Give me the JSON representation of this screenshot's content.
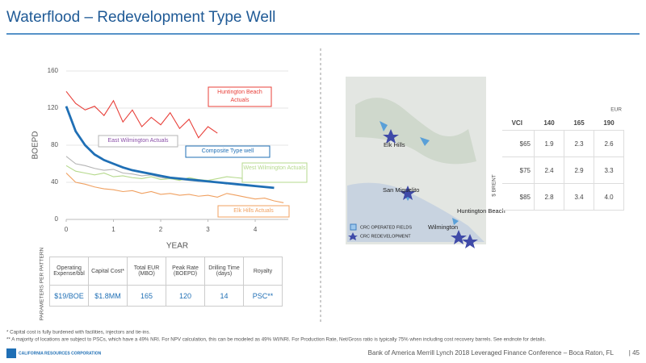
{
  "title": "Waterflood – Redevelopment Type Well",
  "chart_data": {
    "type": "line",
    "x_label": "YEAR",
    "y_label": "BOEPD",
    "x": [
      0,
      0.2,
      0.4,
      0.6,
      0.8,
      1.0,
      1.2,
      1.4,
      1.6,
      1.8,
      2.0,
      2.2,
      2.4,
      2.6,
      2.8,
      3.0,
      3.2,
      3.4,
      3.6,
      3.8,
      4.0,
      4.2,
      4.4,
      4.6
    ],
    "xlim": [
      0,
      4.7
    ],
    "xticks": [
      0,
      1,
      2,
      3,
      4
    ],
    "ylim": [
      0,
      160
    ],
    "yticks": [
      0,
      40,
      80,
      120,
      160
    ],
    "series": [
      {
        "name": "Huntington Beach Actuals",
        "color": "#e8403a",
        "values": [
          138,
          125,
          118,
          122,
          112,
          128,
          105,
          118,
          100,
          110,
          102,
          115,
          98,
          108,
          88,
          100,
          93,
          null,
          null,
          null,
          null,
          null,
          null,
          null
        ]
      },
      {
        "name": "East Wilmington Actuals",
        "color": "#b4b4b4",
        "values": [
          68,
          60,
          58,
          55,
          53,
          54,
          50,
          49,
          47,
          48,
          45,
          44,
          43,
          42,
          41,
          42,
          40,
          38,
          null,
          null,
          null,
          null,
          null,
          null
        ]
      },
      {
        "name": "West Wilmington Actuals",
        "color": "#b5d98c",
        "values": [
          58,
          52,
          50,
          48,
          50,
          46,
          47,
          45,
          44,
          46,
          43,
          44,
          42,
          45,
          43,
          42,
          44,
          46,
          45,
          44,
          43,
          46,
          45,
          null
        ]
      },
      {
        "name": "Elk Hills Actuals",
        "color": "#f0a060",
        "values": [
          50,
          40,
          38,
          35,
          33,
          32,
          30,
          31,
          28,
          30,
          27,
          28,
          26,
          27,
          25,
          26,
          24,
          28,
          26,
          24,
          22,
          23,
          20,
          18
        ]
      },
      {
        "name": "Composite Type well",
        "color": "#1f6fb5",
        "values": [
          122,
          95,
          80,
          70,
          64,
          60,
          56,
          53,
          51,
          49,
          47,
          45,
          44,
          43,
          42,
          41,
          40,
          39,
          38,
          37,
          36,
          35,
          34,
          null
        ]
      }
    ]
  },
  "parameters": {
    "side_label": "PARAMETERS PER PATTERN",
    "columns": [
      {
        "header": "Operating Expense/bbl",
        "value": "$19/BOE"
      },
      {
        "header": "Capital Cost*",
        "value": "$1.8MM"
      },
      {
        "header": "Total EUR (MBO)",
        "value": "165"
      },
      {
        "header": "Peak Rate (BOEPD)",
        "value": "120"
      },
      {
        "header": "Drilling Time (days)",
        "value": "14"
      },
      {
        "header": "Royalty",
        "value": "PSC**"
      }
    ]
  },
  "map": {
    "labels": [
      "Elk Hills",
      "San Miguelito",
      "Huntington Beach",
      "Wilmington"
    ],
    "legend": [
      "CRC OPERATED FIELDS",
      "CRC REDEVELOPMENT"
    ]
  },
  "sensitivity": {
    "top_label": "EUR",
    "corner": "VCI",
    "side_label": "$ BRENT",
    "columns": [
      "140",
      "165",
      "190"
    ],
    "rows": [
      {
        "label": "$65",
        "cells": [
          "1.9",
          "2.3",
          "2.6"
        ]
      },
      {
        "label": "$75",
        "cells": [
          "2.4",
          "2.9",
          "3.3"
        ]
      },
      {
        "label": "$85",
        "cells": [
          "2.8",
          "3.4",
          "4.0"
        ]
      }
    ]
  },
  "footnotes": [
    "* Capital cost is fully burdened with facilities, injectors and tie-ins.",
    "** A majority of locations are subject to PSCs, which have a 49% NRI. For NPV calculation, this can be modeled as 49% WI/NRI. For Production Rate, Net/Gross ratio is typically 75% when including cost recovery barrels. See endnote for details."
  ],
  "footer": {
    "text": "Bank of America Merrill Lynch 2018 Leveraged Finance Conference – Boca Raton, FL",
    "page": "| 45",
    "logo": "CALIFORNIA RESOURCES CORPORATION"
  }
}
